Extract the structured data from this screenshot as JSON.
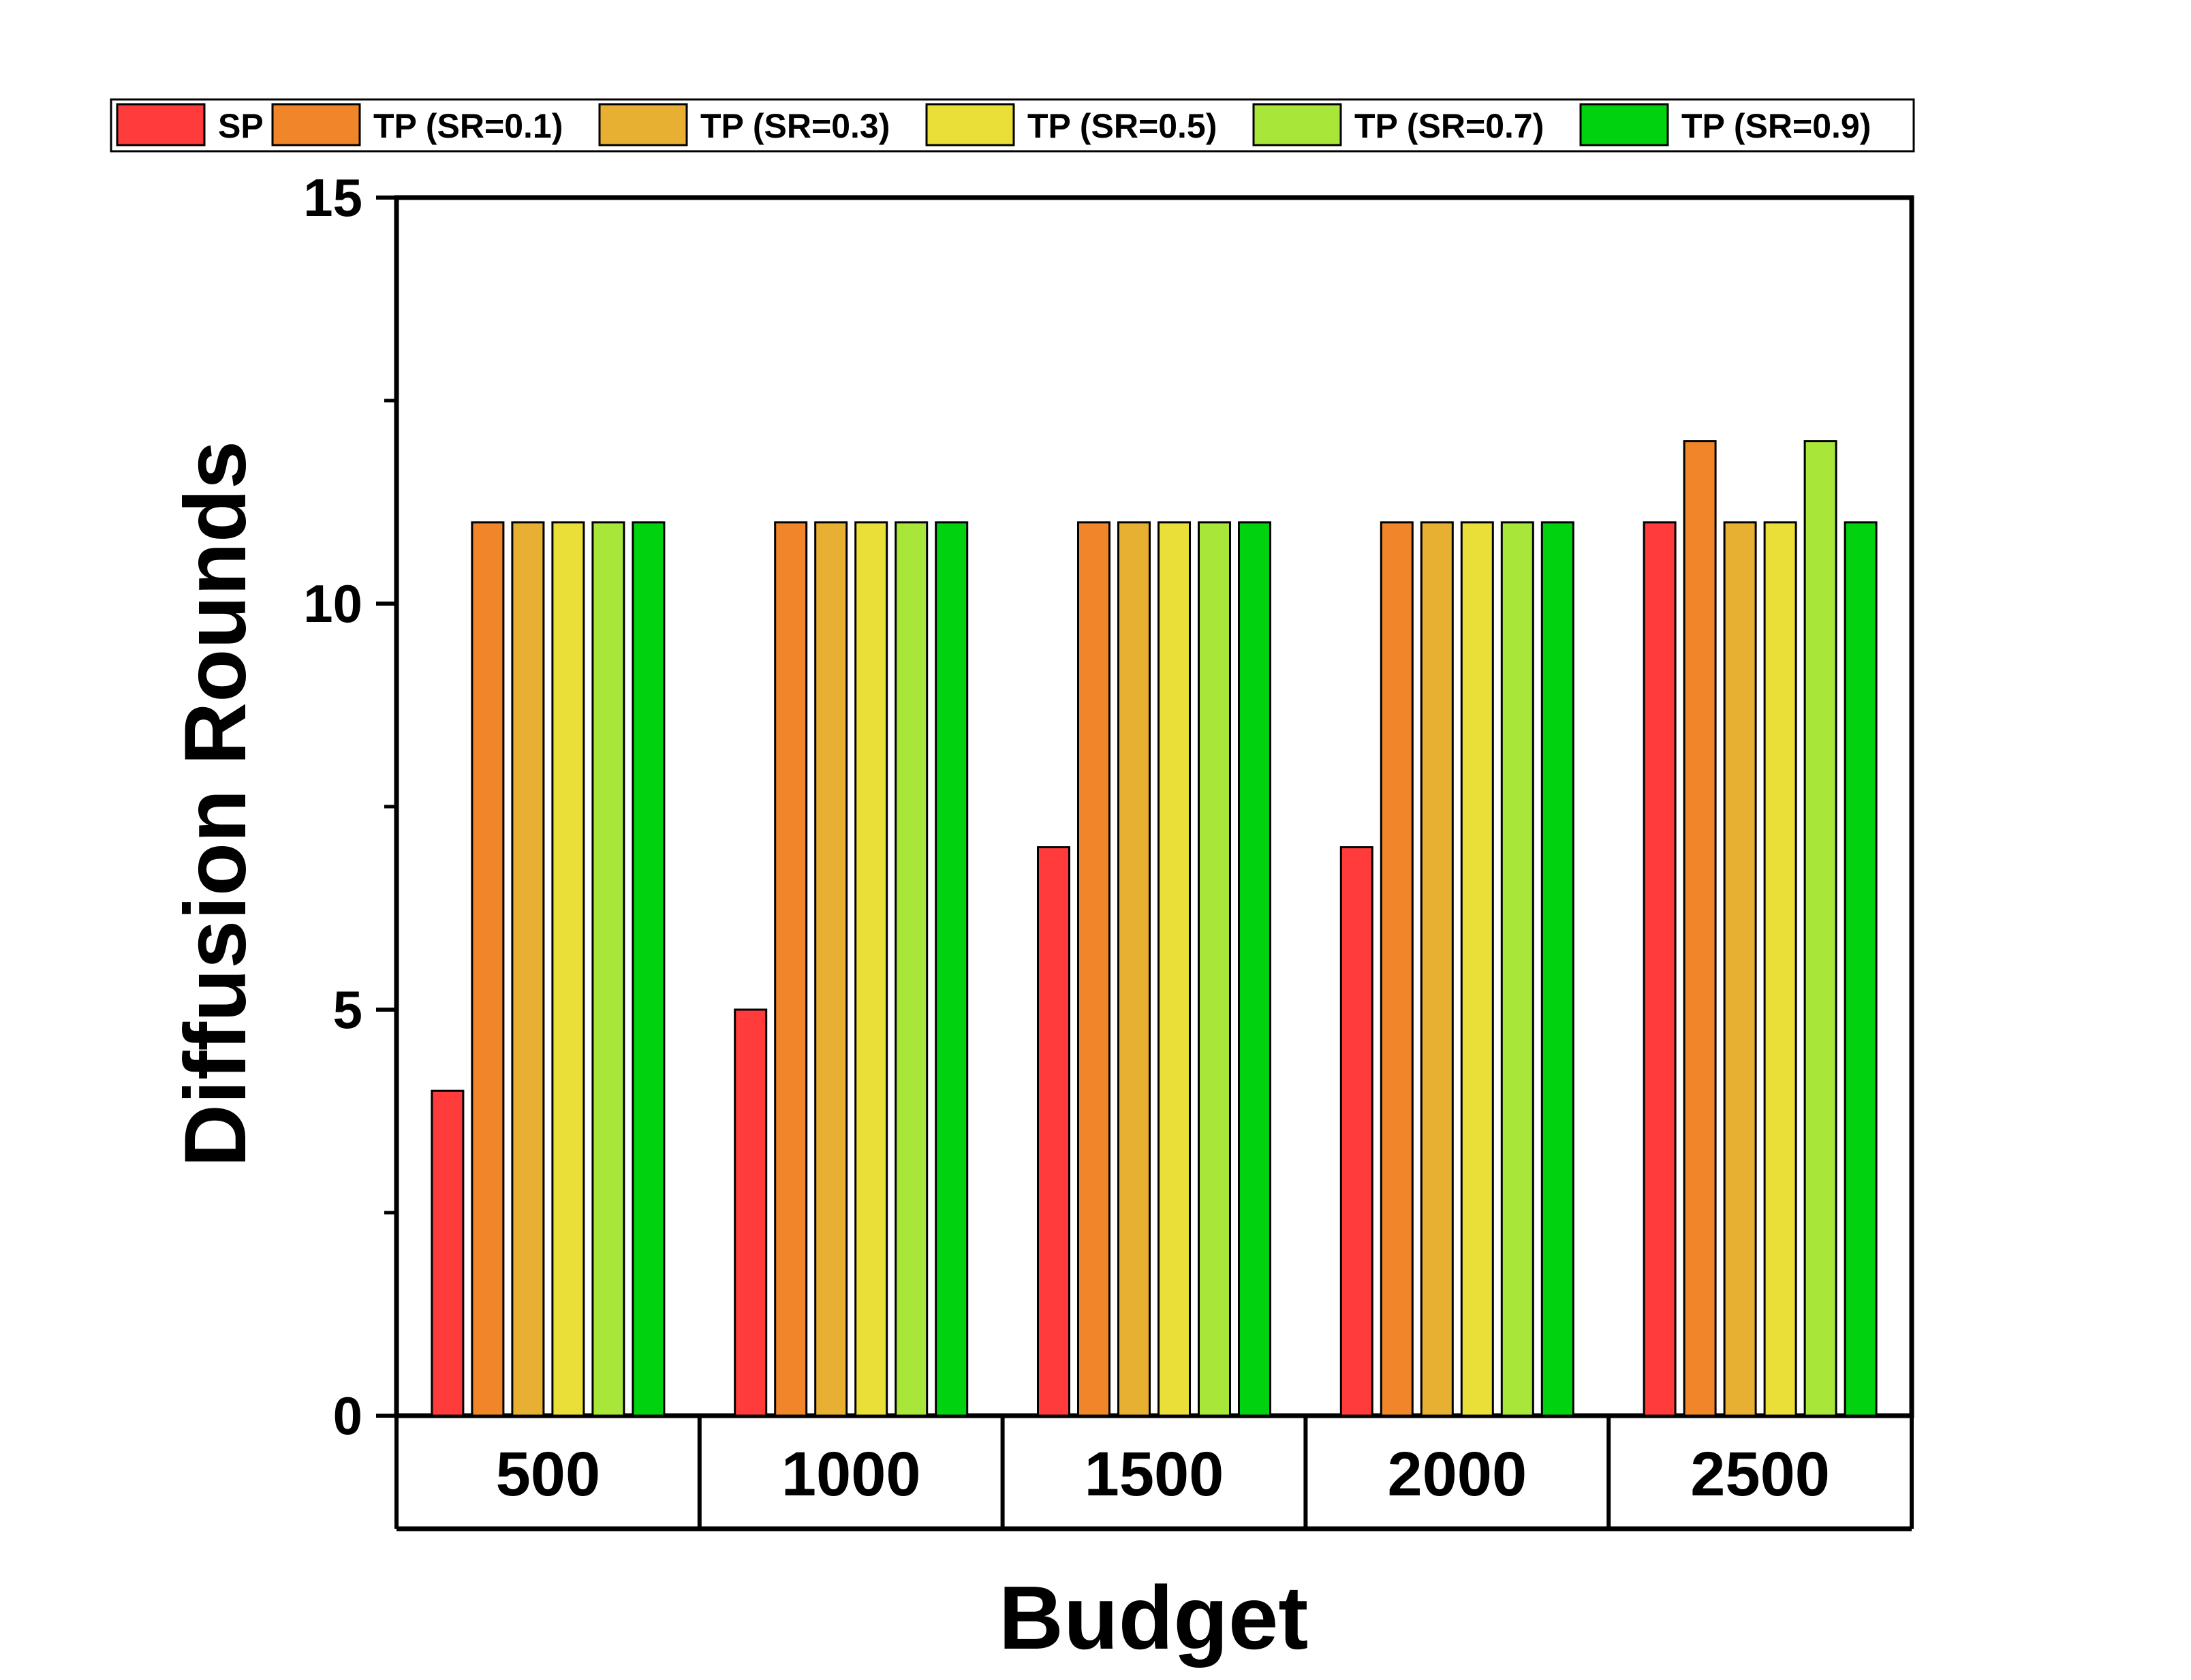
{
  "chart_data": {
    "type": "bar",
    "title": "",
    "xlabel": "Budget",
    "ylabel": "Diffusion Rounds",
    "ylim": [
      0,
      15
    ],
    "yticks": [
      0,
      5,
      10,
      15
    ],
    "yticks_minor": [
      2.5,
      7.5,
      12.5
    ],
    "grid": false,
    "legend_position": "top",
    "categories": [
      "500",
      "1000",
      "1500",
      "2000",
      "2500"
    ],
    "series": [
      {
        "name": "SP",
        "color": "#ff3b3b",
        "values": [
          4,
          5,
          7,
          7,
          11
        ]
      },
      {
        "name": "TP (SR=0.1)",
        "color": "#f0852a",
        "values": [
          11,
          11,
          11,
          11,
          12
        ]
      },
      {
        "name": "TP (SR=0.3)",
        "color": "#e8b033",
        "values": [
          11,
          11,
          11,
          11,
          11
        ]
      },
      {
        "name": "TP (SR=0.5)",
        "color": "#eade38",
        "values": [
          11,
          11,
          11,
          11,
          11
        ]
      },
      {
        "name": "TP (SR=0.7)",
        "color": "#a9e63a",
        "values": [
          11,
          11,
          11,
          11,
          12
        ]
      },
      {
        "name": "TP (SR=0.9)",
        "color": "#00d20f",
        "values": [
          11,
          11,
          11,
          11,
          11
        ]
      }
    ]
  }
}
